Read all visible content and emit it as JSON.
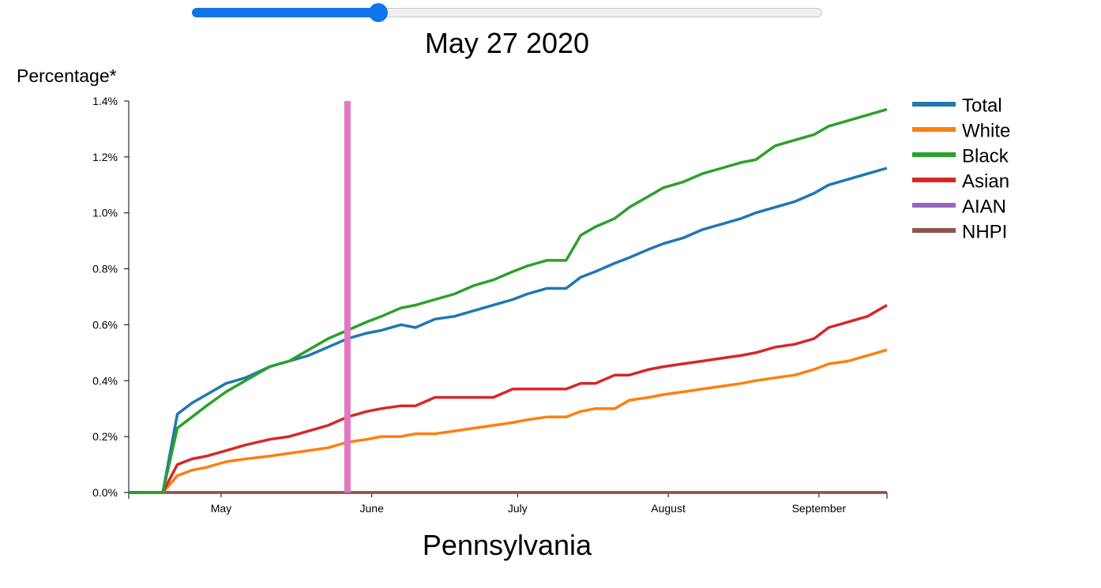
{
  "slider": {
    "value": 0.296
  },
  "date_label": "May 27 2020",
  "state_label": "Pennsylvania",
  "colors": {
    "Total": "#1f77b4",
    "White": "#ff7f0e",
    "Black": "#2ca02c",
    "Asian": "#d62728",
    "AIAN": "#9467bd",
    "NHPI": "#8c564b",
    "marker": "#e377c2",
    "slider": "#0f75ea"
  },
  "chart_data": {
    "type": "line",
    "title": "",
    "xlabel": "",
    "ylabel": "Percentage*",
    "xlim": [
      "2020-04-12",
      "2020-09-15"
    ],
    "ylim": [
      0,
      1.4
    ],
    "y_ticks": [
      "0.0%",
      "0.2%",
      "0.4%",
      "0.6%",
      "0.8%",
      "1.0%",
      "1.2%",
      "1.4%"
    ],
    "x_ticks": [
      {
        "label": "May",
        "date": "2020-05-01"
      },
      {
        "label": "June",
        "date": "2020-06-01"
      },
      {
        "label": "July",
        "date": "2020-07-01"
      },
      {
        "label": "August",
        "date": "2020-08-01"
      },
      {
        "label": "September",
        "date": "2020-09-01"
      }
    ],
    "marker_date": "2020-05-27",
    "legend_position": "right",
    "x": [
      "2020-04-12",
      "2020-04-19",
      "2020-04-22",
      "2020-04-25",
      "2020-04-28",
      "2020-05-02",
      "2020-05-06",
      "2020-05-11",
      "2020-05-15",
      "2020-05-19",
      "2020-05-23",
      "2020-05-27",
      "2020-05-31",
      "2020-06-03",
      "2020-06-07",
      "2020-06-10",
      "2020-06-14",
      "2020-06-18",
      "2020-06-22",
      "2020-06-26",
      "2020-06-30",
      "2020-07-03",
      "2020-07-07",
      "2020-07-11",
      "2020-07-14",
      "2020-07-17",
      "2020-07-21",
      "2020-07-24",
      "2020-07-28",
      "2020-07-31",
      "2020-08-04",
      "2020-08-08",
      "2020-08-12",
      "2020-08-16",
      "2020-08-19",
      "2020-08-23",
      "2020-08-27",
      "2020-08-31",
      "2020-09-03",
      "2020-09-07",
      "2020-09-11",
      "2020-09-15"
    ],
    "series": [
      {
        "name": "Total",
        "values": [
          0,
          0,
          0.28,
          0.32,
          0.35,
          0.39,
          0.41,
          0.45,
          0.47,
          0.49,
          0.52,
          0.55,
          0.57,
          0.58,
          0.6,
          0.59,
          0.62,
          0.63,
          0.65,
          0.67,
          0.69,
          0.71,
          0.73,
          0.73,
          0.77,
          0.79,
          0.82,
          0.84,
          0.87,
          0.89,
          0.91,
          0.94,
          0.96,
          0.98,
          1.0,
          1.02,
          1.04,
          1.07,
          1.1,
          1.12,
          1.14,
          1.16
        ]
      },
      {
        "name": "White",
        "values": [
          0,
          0,
          0.06,
          0.08,
          0.09,
          0.11,
          0.12,
          0.13,
          0.14,
          0.15,
          0.16,
          0.18,
          0.19,
          0.2,
          0.2,
          0.21,
          0.21,
          0.22,
          0.23,
          0.24,
          0.25,
          0.26,
          0.27,
          0.27,
          0.29,
          0.3,
          0.3,
          0.33,
          0.34,
          0.35,
          0.36,
          0.37,
          0.38,
          0.39,
          0.4,
          0.41,
          0.42,
          0.44,
          0.46,
          0.47,
          0.49,
          0.51
        ]
      },
      {
        "name": "Black",
        "values": [
          0,
          0,
          0.23,
          0.27,
          0.31,
          0.36,
          0.4,
          0.45,
          0.47,
          0.51,
          0.55,
          0.58,
          0.61,
          0.63,
          0.66,
          0.67,
          0.69,
          0.71,
          0.74,
          0.76,
          0.79,
          0.81,
          0.83,
          0.83,
          0.92,
          0.95,
          0.98,
          1.02,
          1.06,
          1.09,
          1.11,
          1.14,
          1.16,
          1.18,
          1.19,
          1.24,
          1.26,
          1.28,
          1.31,
          1.33,
          1.35,
          1.37
        ]
      },
      {
        "name": "Asian",
        "values": [
          0,
          0,
          0.1,
          0.12,
          0.13,
          0.15,
          0.17,
          0.19,
          0.2,
          0.22,
          0.24,
          0.27,
          0.29,
          0.3,
          0.31,
          0.31,
          0.34,
          0.34,
          0.34,
          0.34,
          0.37,
          0.37,
          0.37,
          0.37,
          0.39,
          0.39,
          0.42,
          0.42,
          0.44,
          0.45,
          0.46,
          0.47,
          0.48,
          0.49,
          0.5,
          0.52,
          0.53,
          0.55,
          0.59,
          0.61,
          0.63,
          0.67
        ]
      },
      {
        "name": "AIAN",
        "values": [
          0,
          0,
          0,
          0,
          0,
          0,
          0,
          0,
          0,
          0,
          0,
          0,
          0,
          0,
          0,
          0,
          0,
          0,
          0,
          0,
          0,
          0,
          0,
          0,
          0,
          0,
          0,
          0,
          0,
          0,
          0,
          0,
          0,
          0,
          0,
          0,
          0,
          0,
          0,
          0,
          0,
          0
        ]
      },
      {
        "name": "NHPI",
        "values": [
          0,
          0,
          0,
          0,
          0,
          0,
          0,
          0,
          0,
          0,
          0,
          0,
          0,
          0,
          0,
          0,
          0,
          0,
          0,
          0,
          0,
          0,
          0,
          0,
          0,
          0,
          0,
          0,
          0,
          0,
          0,
          0,
          0,
          0,
          0,
          0,
          0,
          0,
          0,
          0,
          0,
          0
        ]
      }
    ]
  }
}
